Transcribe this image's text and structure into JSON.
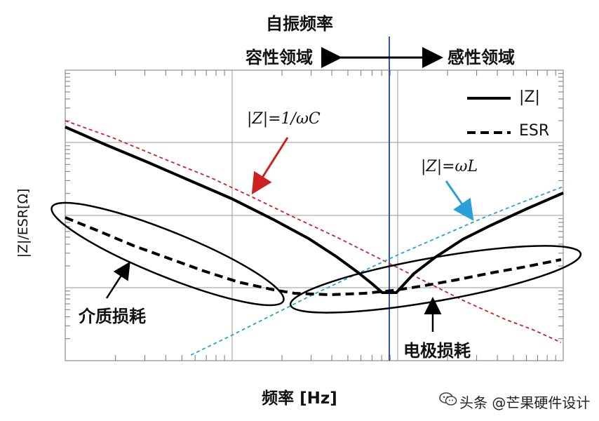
{
  "diagram": {
    "top_title": "自振频率",
    "capacitive_region": "容性领域",
    "inductive_region": "感性领域",
    "y_axis_label": "|Z|/ESR[Ω]",
    "x_axis_label": "频率 [Hz]",
    "legend": {
      "z_label": "|Z|",
      "esr_label": "ESR"
    },
    "equations": {
      "capacitive": "|Z|=1/ωC",
      "inductive": "|Z|=ωL"
    },
    "annotations": {
      "dielectric_loss": "介质损耗",
      "electrode_loss": "电极损耗"
    },
    "colors": {
      "capacitive_line": "#cc2222",
      "inductive_line": "#2aa0d8",
      "resonance_line": "#3355aa",
      "grid": "#999999",
      "main_curves": "#000000"
    }
  },
  "watermark": {
    "text": "头条 @芒果硬件设计",
    "icon": "wechat-icon"
  }
}
